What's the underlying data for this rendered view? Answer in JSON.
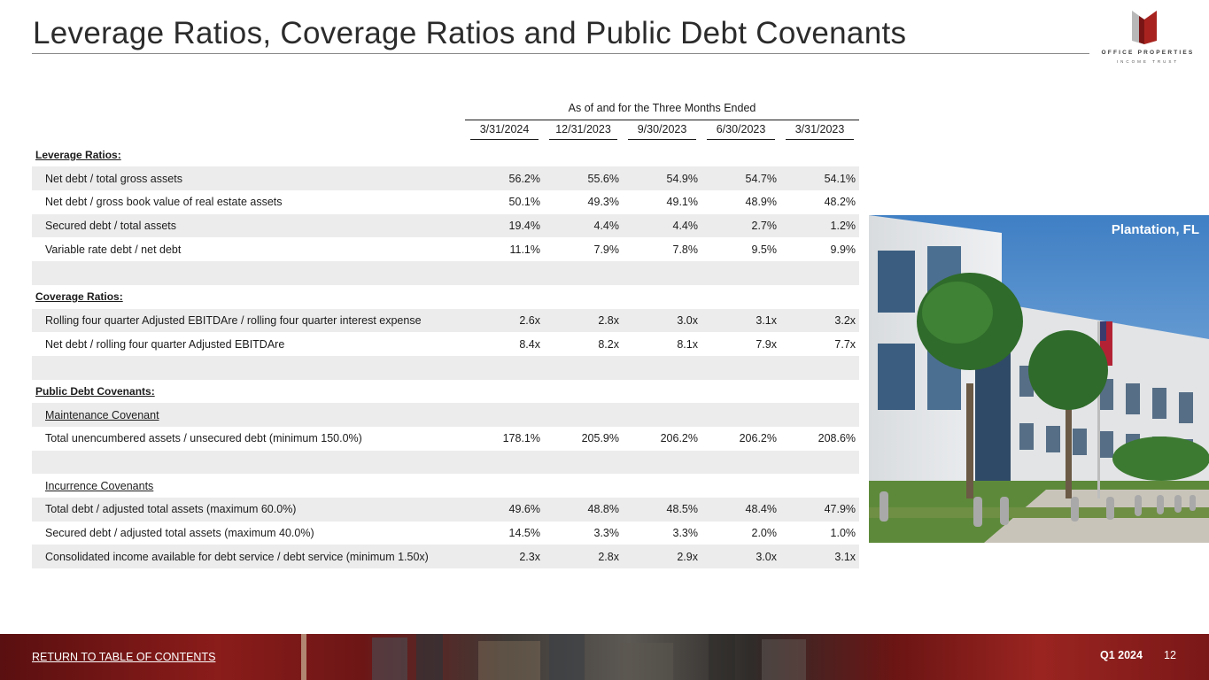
{
  "header": {
    "title": "Leverage Ratios, Coverage Ratios and Public Debt Covenants",
    "logo_line1": "OFFICE PROPERTIES",
    "logo_line2": "INCOME TRUST"
  },
  "table": {
    "group_header": "As of and for the Three Months Ended",
    "columns": [
      "3/31/2024",
      "12/31/2023",
      "9/30/2023",
      "6/30/2023",
      "3/31/2023"
    ],
    "rows": [
      {
        "type": "section",
        "label": "Leverage Ratios:",
        "values": []
      },
      {
        "type": "data",
        "label": "Net debt / total gross assets",
        "values": [
          "56.2%",
          "55.6%",
          "54.9%",
          "54.7%",
          "54.1%"
        ]
      },
      {
        "type": "data",
        "label": "Net debt / gross book value of real estate assets",
        "values": [
          "50.1%",
          "49.3%",
          "49.1%",
          "48.9%",
          "48.2%"
        ]
      },
      {
        "type": "data",
        "label": "Secured debt / total assets",
        "values": [
          "19.4%",
          "4.4%",
          "4.4%",
          "2.7%",
          "1.2%"
        ]
      },
      {
        "type": "data",
        "label": "Variable rate debt / net debt",
        "values": [
          "11.1%",
          "7.9%",
          "7.8%",
          "9.5%",
          "9.9%"
        ]
      },
      {
        "type": "blank",
        "label": "",
        "values": []
      },
      {
        "type": "section",
        "label": "Coverage Ratios:",
        "values": []
      },
      {
        "type": "data",
        "label": "Rolling four quarter Adjusted EBITDAre / rolling four quarter interest expense",
        "values": [
          "2.6x",
          "2.8x",
          "3.0x",
          "3.1x",
          "3.2x"
        ]
      },
      {
        "type": "data",
        "label": "Net debt / rolling four quarter Adjusted EBITDAre",
        "values": [
          "8.4x",
          "8.2x",
          "8.1x",
          "7.9x",
          "7.7x"
        ]
      },
      {
        "type": "blank",
        "label": "",
        "values": []
      },
      {
        "type": "section",
        "label": "Public Debt Covenants:",
        "values": []
      },
      {
        "type": "subsection",
        "label": "Maintenance Covenant",
        "values": []
      },
      {
        "type": "data",
        "label": "Total unencumbered assets / unsecured debt (minimum 150.0%)",
        "values": [
          "178.1%",
          "205.9%",
          "206.2%",
          "206.2%",
          "208.6%"
        ]
      },
      {
        "type": "blank",
        "label": "",
        "values": []
      },
      {
        "type": "subsection",
        "label": "Incurrence Covenants",
        "values": []
      },
      {
        "type": "data",
        "label": "Total debt / adjusted total assets (maximum 60.0%)",
        "values": [
          "49.6%",
          "48.8%",
          "48.5%",
          "48.4%",
          "47.9%"
        ]
      },
      {
        "type": "data",
        "label": "Secured debt / adjusted total assets (maximum 40.0%)",
        "values": [
          "14.5%",
          "3.3%",
          "3.3%",
          "2.0%",
          "1.0%"
        ]
      },
      {
        "type": "data",
        "label": "Consolidated income available for debt service / debt service (minimum 1.50x)",
        "values": [
          "2.3x",
          "2.8x",
          "2.9x",
          "3.0x",
          "3.1x"
        ]
      }
    ]
  },
  "photo": {
    "caption": "Plantation, FL"
  },
  "footer": {
    "return_link": "RETURN TO TABLE OF CONTENTS",
    "quarter": "Q1 2024",
    "page_number": "12"
  },
  "colors": {
    "brand_red": "#a8231f",
    "row_shade": "#ececec",
    "text": "#1c1c1c"
  }
}
